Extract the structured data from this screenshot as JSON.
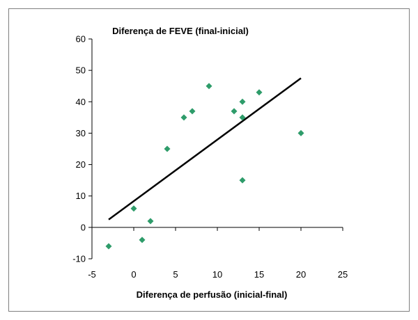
{
  "chart_data": {
    "type": "scatter",
    "title": "Diferença de FEVE (final-inicial)",
    "xlabel": "Diferença de perfusão (inicial-final)",
    "ylabel": "",
    "xlim": [
      -5,
      25
    ],
    "ylim": [
      -10,
      60
    ],
    "x_ticks": [
      "-5",
      "0",
      "5",
      "10",
      "15",
      "20",
      "25"
    ],
    "y_ticks": [
      "-10",
      "0",
      "10",
      "20",
      "30",
      "40",
      "50",
      "60"
    ],
    "grid": false,
    "legend": "none",
    "marker_color": "#2e9c6a",
    "line_color": "#000000",
    "series": [
      {
        "points": [
          {
            "x": -3,
            "y": -6
          },
          {
            "x": 0,
            "y": 6
          },
          {
            "x": 1,
            "y": -4
          },
          {
            "x": 2,
            "y": 2
          },
          {
            "x": 4,
            "y": 25
          },
          {
            "x": 6,
            "y": 35
          },
          {
            "x": 7,
            "y": 37
          },
          {
            "x": 9,
            "y": 45
          },
          {
            "x": 12,
            "y": 37
          },
          {
            "x": 13,
            "y": 40
          },
          {
            "x": 13,
            "y": 35
          },
          {
            "x": 13,
            "y": 15
          },
          {
            "x": 15,
            "y": 43
          },
          {
            "x": 20,
            "y": 30
          }
        ]
      }
    ],
    "trendline": {
      "x1": -3,
      "y1": 2.5,
      "x2": 20,
      "y2": 47.5
    }
  }
}
